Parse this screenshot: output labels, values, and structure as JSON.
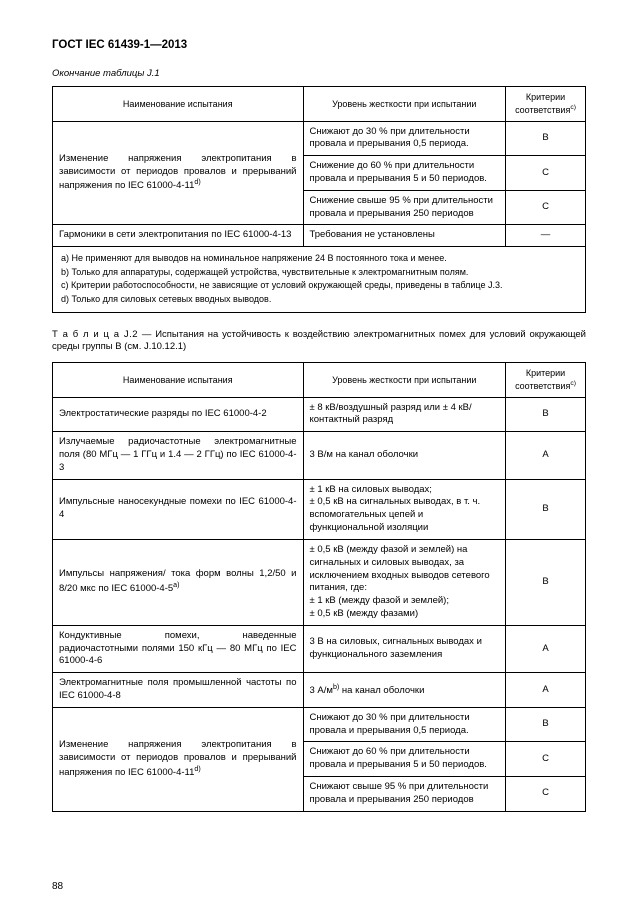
{
  "header": "ГОСТ IEC 61439-1—2013",
  "table1": {
    "continuation": "Окончание таблицы J.1",
    "headers": {
      "name": "Наименование испытания",
      "level": "Уровень жесткости при испытании",
      "criteria": "Критерии соответствия"
    },
    "sup_c": "c)",
    "rows": {
      "r1": {
        "name": "Изменение напряжения электропитания в зависимости от периодов провалов и прерываний напряжения по IEC 61000-4-11",
        "sup": "d)",
        "l1": "Снижают до 30 % при длительности провала и прерывания 0,5 периода.",
        "c1": "B",
        "l2": "Снижение до 60 % при длительности провала и прерывания 5 и 50 периодов.",
        "c2": "C",
        "l3": "Снижение свыше 95 % при длительности провала и прерывания 250 периодов",
        "c3": "C"
      },
      "r2": {
        "name": "Гармоники в сети электропитания по IEC 61000-4-13",
        "level": "Требования не установлены",
        "crit": "—"
      }
    },
    "footnotes": {
      "a": "a) Не применяют для выводов на номинальное напряжение 24 В постоянного тока и менее.",
      "b": "b) Только для аппаратуры, содержащей устройства, чувствительные к электромагнитным полям.",
      "c": "c) Критерии работоспособности, не зависящие от условий окружающей среды, приведены в таблице J.3.",
      "d": "d) Только для силовых сетевых вводных выводов."
    }
  },
  "table2": {
    "caption_label": "Т а б л и ц а  J.2",
    "caption_text": " — Испытания на устойчивость к воздействию электромагнитных помех для условий окружающей среды группы B (см. J.10.12.1)",
    "headers": {
      "name": "Наименование испытания",
      "level": "Уровень жесткости при испытании",
      "criteria": "Критерии соответствия"
    },
    "sup_c": "c)",
    "rows": {
      "r1": {
        "name": "Электростатические разряды по IEC 61000-4-2",
        "level": "± 8 кВ/воздушный разряд или ± 4 кВ/контактный разряд",
        "crit": "B"
      },
      "r2": {
        "name": "Излучаемые радиочастотные электромагнитные поля (80 МГц — 1 ГГц и 1.4 — 2 ГГц) по IEC 61000-4-3",
        "level": "3 В/м на канал оболочки",
        "crit": "A"
      },
      "r3": {
        "name": "Импульсные наносекундные помехи по IEC 61000-4-4",
        "level": "± 1 кВ на силовых выводах;\n± 0,5 кВ на сигнальных выводах, в т. ч. вспомогательных цепей и функциональной изоляции",
        "crit": "B"
      },
      "r4": {
        "name_a": "Импульсы напряжения/ тока форм волны 1,2/50 и 8/20 мкс по IEC 61000-4-5",
        "sup": "a)",
        "level": "± 0,5 кВ (между фазой и землей) на сигнальных и силовых выводах, за исключением входных выводов сетевого питания, где:\n± 1 кВ (между фазой и землей);\n± 0,5 кВ (между фазами)",
        "crit": "B"
      },
      "r5": {
        "name": "Кондуктивные помехи, наведенные радиочастотными полями 150 кГц — 80 МГц по IEC 61000-4-6",
        "level": "3 В на силовых, сигнальных выводах и функционального заземления",
        "crit": "A"
      },
      "r6": {
        "name": "Электромагнитные поля промышленной частоты по IEC 61000-4-8",
        "level_a": "3 А/м",
        "sup": "b)",
        "level_b": " на канал оболочки",
        "crit": "A"
      },
      "r7": {
        "name": "Изменение напряжения электропитания в зависимости от периодов провалов и прерываний напряжения по IEC 61000-4-11",
        "sup": "d)",
        "l1": "Снижают до 30 % при длительности провала и прерывания 0,5 периода.",
        "c1": "B",
        "l2": "Снижают до 60 % при длительности провала и прерывания 5 и 50 периодов.",
        "c2": "C",
        "l3": "Снижают свыше 95 % при длительности провала и прерывания 250 периодов",
        "c3": "C"
      }
    }
  },
  "pagenum": "88"
}
